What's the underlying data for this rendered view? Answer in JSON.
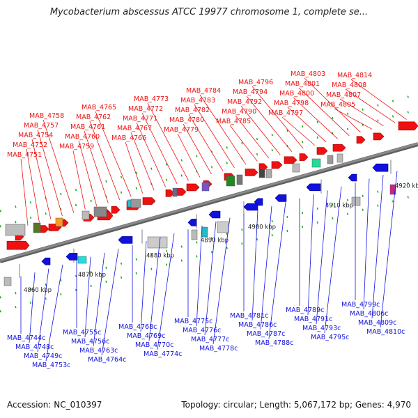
{
  "title": "Mycobacterium abscessus ATCC 19977 chromosome 1, complete se...",
  "footer": {
    "accession": "Accession: NC_010397",
    "topology": "Topology: circular; Length: 5,067,172 bp; Genes: 4,970"
  },
  "colors": {
    "forward": "#ee1111",
    "reverse": "#1111dd",
    "backbone": "#8a8a8a",
    "tick": "#11aa11"
  },
  "ticks": [
    "4860 kbp",
    "4870 kbp",
    "4880 kbp",
    "4890 kbp",
    "4900 kbp",
    "4910 kbp",
    "4920 kbp"
  ],
  "forward_genes": [
    "MAB_4751",
    "MAB_4752",
    "MAB_4754",
    "MAB_4757",
    "MAB_4758",
    "MAB_4759",
    "MAB_4760",
    "MAB_4761",
    "MAB_4762",
    "MAB_4765",
    "MAB_4766",
    "MAB_4767",
    "MAB_4771",
    "MAB_4772",
    "MAB_4773",
    "MAB_4779",
    "MAB_4780",
    "MAB_4782",
    "MAB_4783",
    "MAB_4784",
    "MAB_4785",
    "MAB_4790",
    "MAB_4792",
    "MAB_4794",
    "MAB_4796",
    "MAB_4797",
    "MAB_4798",
    "MAB_4800",
    "MAB_4801",
    "MAB_4803",
    "MAB_4805",
    "MAB_4807",
    "MAB_4808",
    "MAB_4814"
  ],
  "reverse_genes": [
    "MAB_4744c",
    "MAB_4748c",
    "MAB_4749c",
    "MAB_4753c",
    "MAB_4755c",
    "MAB_4756c",
    "MAB_4763c",
    "MAB_4764c",
    "MAB_4768c",
    "MAB_4769c",
    "MAB_4770c",
    "MAB_4774c",
    "MAB_4775c",
    "MAB_4776c",
    "MAB_4777c",
    "MAB_4778c",
    "MAB_4781c",
    "MAB_4786c",
    "MAB_4787c",
    "MAB_4788c",
    "MAB_4789c",
    "MAB_4791c",
    "MAB_4793c",
    "MAB_4795c",
    "MAB_4799c",
    "MAB_4806c",
    "MAB_4809c",
    "MAB_4810c"
  ]
}
